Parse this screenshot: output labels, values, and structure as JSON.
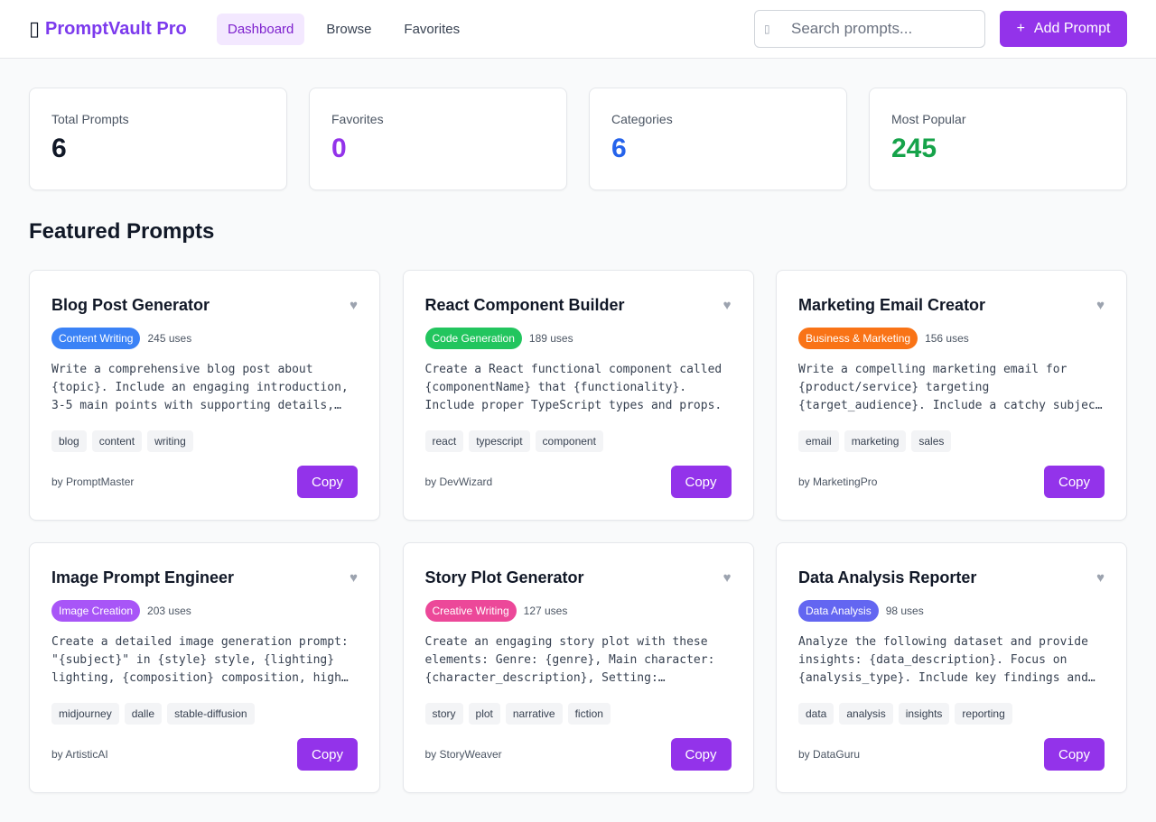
{
  "header": {
    "brand_icon": "vault-icon",
    "brand_name": "PromptVault Pro",
    "nav": [
      {
        "label": "Dashboard",
        "active": true
      },
      {
        "label": "Browse",
        "active": false
      },
      {
        "label": "Favorites",
        "active": false
      }
    ],
    "search_placeholder": "Search prompts...",
    "add_label": "Add Prompt",
    "add_icon": "+"
  },
  "stats": [
    {
      "label": "Total Prompts",
      "value": "6",
      "color": "#111827"
    },
    {
      "label": "Favorites",
      "value": "0",
      "color": "#9333ea"
    },
    {
      "label": "Categories",
      "value": "6",
      "color": "#2563eb"
    },
    {
      "label": "Most Popular",
      "value": "245",
      "color": "#16a34a"
    }
  ],
  "section_title": "Featured Prompts",
  "copy_label": "Copy",
  "cards": [
    {
      "title": "Blog Post Generator",
      "category": "Content Writing",
      "category_color": "#3b82f6",
      "uses": "245 uses",
      "body": "Write a comprehensive blog post about {topic}. Include an engaging introduction, 3-5 main points with supporting details, and a conclusion.",
      "tags": [
        "blog",
        "content",
        "writing"
      ],
      "author": "by PromptMaster"
    },
    {
      "title": "React Component Builder",
      "category": "Code Generation",
      "category_color": "#22c55e",
      "uses": "189 uses",
      "body": "Create a React functional component called {componentName} that {functionality}. Include proper TypeScript types and props.",
      "tags": [
        "react",
        "typescript",
        "component"
      ],
      "author": "by DevWizard"
    },
    {
      "title": "Marketing Email Creator",
      "category": "Business & Marketing",
      "category_color": "#f97316",
      "uses": "156 uses",
      "body": "Write a compelling marketing email for {product/service} targeting {target_audience}. Include a catchy subject line and a clear call to action.",
      "tags": [
        "email",
        "marketing",
        "sales"
      ],
      "author": "by MarketingPro"
    },
    {
      "title": "Image Prompt Engineer",
      "category": "Image Creation",
      "category_color": "#a855f7",
      "uses": "203 uses",
      "body": "Create a detailed image generation prompt: \"{subject}\" in {style} style, {lighting} lighting, {composition} composition, high detail.",
      "tags": [
        "midjourney",
        "dalle",
        "stable-diffusion"
      ],
      "author": "by ArtisticAI"
    },
    {
      "title": "Story Plot Generator",
      "category": "Creative Writing",
      "category_color": "#ec4899",
      "uses": "127 uses",
      "body": "Create an engaging story plot with these elements: Genre: {genre}, Main character: {character_description}, Setting: {setting}.",
      "tags": [
        "story",
        "plot",
        "narrative",
        "fiction"
      ],
      "author": "by StoryWeaver"
    },
    {
      "title": "Data Analysis Reporter",
      "category": "Data Analysis",
      "category_color": "#6366f1",
      "uses": "98 uses",
      "body": "Analyze the following dataset and provide insights: {data_description}. Focus on {analysis_type}. Include key findings and recommendations.",
      "tags": [
        "data",
        "analysis",
        "insights",
        "reporting"
      ],
      "author": "by DataGuru"
    }
  ]
}
